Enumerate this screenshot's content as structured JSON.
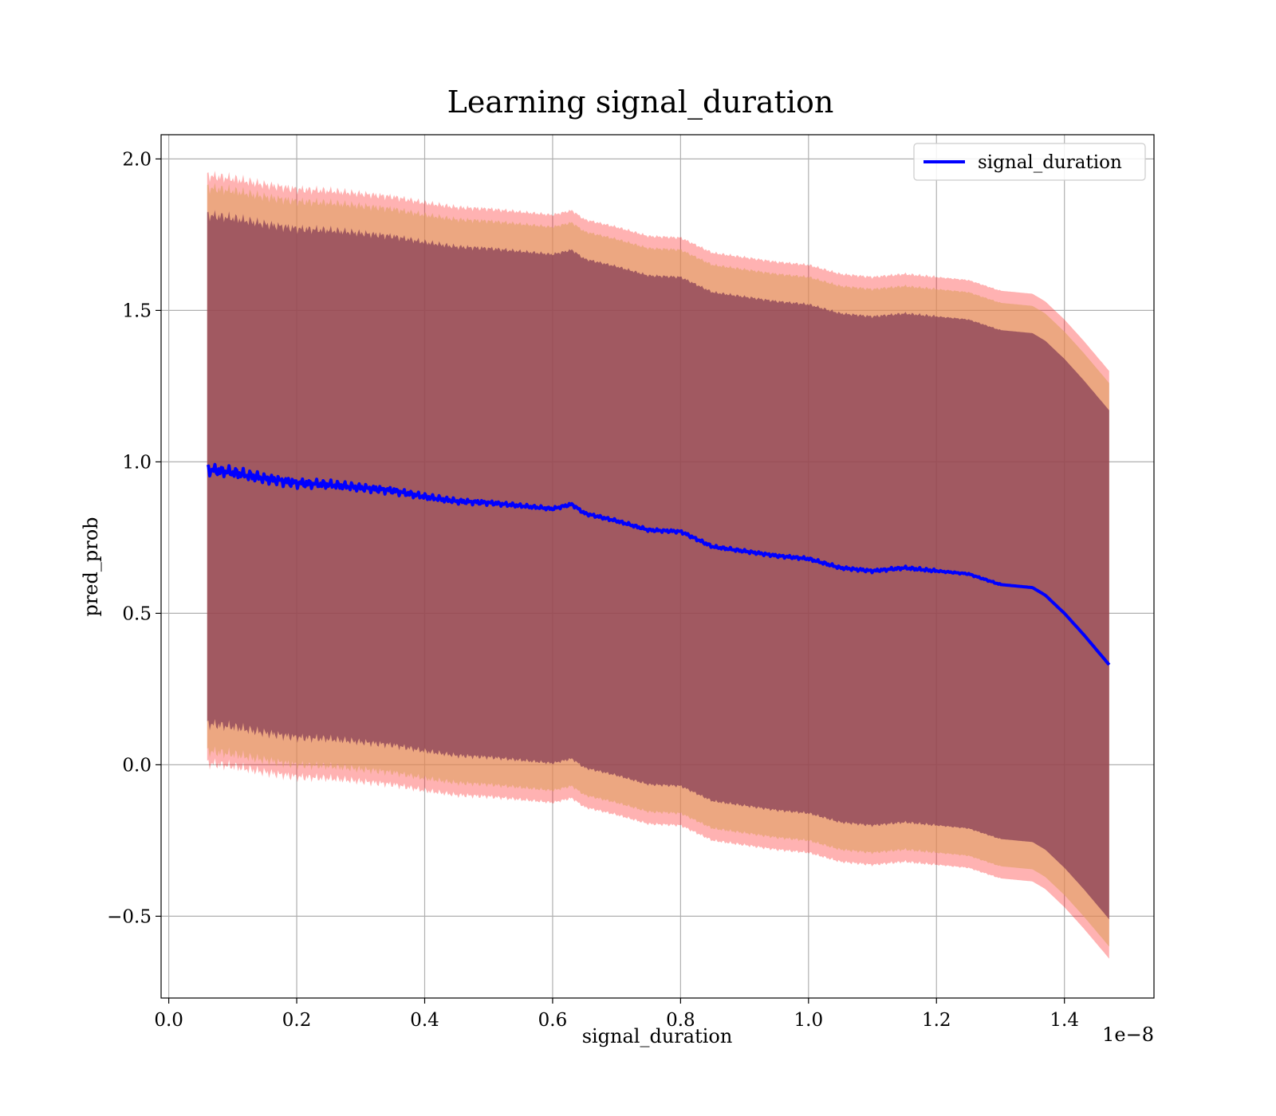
{
  "chart_data": {
    "type": "line",
    "title": "Learning signal_duration",
    "xlabel": "signal_duration",
    "ylabel": "pred_prob",
    "x_offset_label": "1e−8",
    "xlim": [
      -0.012,
      1.54
    ],
    "ylim": [
      -0.77,
      2.08
    ],
    "xticks": [
      0.0,
      0.2,
      0.4,
      0.6,
      0.8,
      1.0,
      1.2,
      1.4
    ],
    "xtick_labels": [
      "0.0",
      "0.2",
      "0.4",
      "0.6",
      "0.8",
      "1.0",
      "1.2",
      "1.4"
    ],
    "yticks": [
      -0.5,
      0.0,
      0.5,
      1.0,
      1.5,
      2.0
    ],
    "ytick_labels": [
      "−0.5",
      "0.0",
      "0.5",
      "1.0",
      "1.5",
      "2.0"
    ],
    "grid": true,
    "legend": {
      "position": "top-right",
      "entries": [
        "signal_duration"
      ]
    },
    "colors": {
      "line": "#0000ff",
      "band_outer": "#ff0000",
      "band_middle": "#e0a060",
      "band_inner": "#7a3050",
      "grid": "#b0b0b0"
    },
    "x": [
      0.06,
      0.1,
      0.15,
      0.2,
      0.25,
      0.3,
      0.35,
      0.4,
      0.45,
      0.5,
      0.55,
      0.6,
      0.63,
      0.65,
      0.7,
      0.75,
      0.8,
      0.85,
      0.9,
      0.95,
      1.0,
      1.05,
      1.1,
      1.15,
      1.2,
      1.25,
      1.3,
      1.35,
      1.37,
      1.4,
      1.43,
      1.47
    ],
    "series": [
      {
        "name": "signal_duration",
        "values": [
          0.975,
          0.965,
          0.945,
          0.93,
          0.925,
          0.915,
          0.905,
          0.885,
          0.87,
          0.865,
          0.855,
          0.845,
          0.86,
          0.83,
          0.805,
          0.775,
          0.77,
          0.72,
          0.705,
          0.69,
          0.68,
          0.65,
          0.64,
          0.65,
          0.64,
          0.63,
          0.595,
          0.585,
          0.56,
          0.5,
          0.43,
          0.33
        ]
      }
    ],
    "bands": [
      {
        "level": "outer",
        "half_width": 0.97
      },
      {
        "level": "middle",
        "half_width": 0.93
      },
      {
        "level": "inner",
        "half_width": 0.84
      }
    ]
  }
}
